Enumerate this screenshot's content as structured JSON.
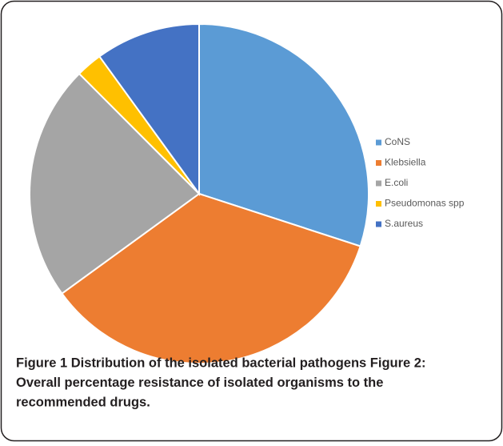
{
  "chart_data": {
    "type": "pie",
    "categories": [
      "CoNS",
      "Klebsiella",
      "E.coli",
      "Pseudomonas spp",
      "S.aureus"
    ],
    "values": [
      30,
      35,
      22.5,
      2.5,
      10
    ],
    "colors": [
      "#5b9bd5",
      "#ed7d31",
      "#a5a5a5",
      "#ffc000",
      "#4472c4"
    ],
    "legend": "right"
  },
  "caption": [
    "Figure 1 Distribution of the isolated bacterial pathogens Figure 2:",
    "Overall percentage resistance of isolated organisms to the",
    "recommended drugs."
  ]
}
